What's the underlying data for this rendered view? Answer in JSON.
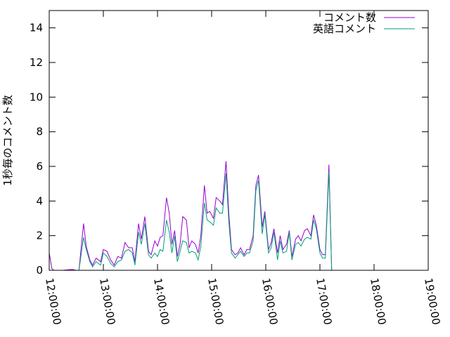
{
  "chart_data": {
    "type": "line",
    "ylabel": "1秒毎のコメント数",
    "ylim": [
      0,
      15
    ],
    "yticks": [
      0,
      2,
      4,
      6,
      8,
      10,
      12,
      14
    ],
    "ytick_labels": [
      "0",
      "2",
      "4",
      "6",
      "8",
      "10",
      "12",
      "14"
    ],
    "xlim": [
      "12:00:00",
      "19:00:00"
    ],
    "xtick_labels": [
      "12:00:00",
      "13:00:00",
      "14:00:00",
      "15:00:00",
      "16:00:00",
      "17:00:00",
      "18:00:00",
      "19:00:00"
    ],
    "legend_position": "top-right",
    "grid": false,
    "x": [
      "12:00",
      "12:05",
      "12:10",
      "12:15",
      "12:20",
      "12:25",
      "12:30",
      "12:35",
      "12:40",
      "12:45",
      "12:50",
      "12:55",
      "13:00",
      "13:05",
      "13:10",
      "13:15",
      "13:20",
      "13:25",
      "13:30",
      "13:35",
      "13:40",
      "13:45",
      "13:50",
      "13:55",
      "14:00",
      "14:05",
      "14:10",
      "14:15",
      "14:20",
      "14:25",
      "14:30",
      "14:35",
      "14:40",
      "14:45",
      "14:50",
      "14:55",
      "15:00",
      "15:05",
      "15:10",
      "15:15",
      "15:20",
      "15:25",
      "15:30",
      "15:35",
      "15:40",
      "15:45",
      "15:50",
      "15:55",
      "16:00",
      "16:05",
      "16:10",
      "16:15",
      "16:20",
      "16:25",
      "16:30",
      "16:35",
      "16:40",
      "16:45",
      "16:50",
      "16:55",
      "17:00",
      "17:05",
      "17:10",
      "17:15",
      "17:20",
      "17:25",
      "17:30",
      "17:35",
      "17:40",
      "17:45",
      "17:50",
      "17:55",
      "18:00",
      "18:05",
      "18:10",
      "18:15",
      "18:20",
      "18:25"
    ],
    "series": [
      {
        "name": "コメント数",
        "color": "#9400d3",
        "values": [
          1.0,
          0.1,
          0.0,
          0.0,
          0.0,
          0.05,
          0.0,
          0.0,
          2.7,
          1.4,
          0.6,
          0.3,
          0.7,
          0.5,
          1.2,
          1.1,
          0.6,
          0.3,
          0.8,
          0.7,
          1.6,
          1.3,
          1.3,
          0.5,
          2.7,
          1.8,
          3.1,
          1.1,
          0.9,
          1.7,
          1.4,
          1.9,
          2.0,
          4.2,
          3.3,
          1.5,
          2.3,
          0.8,
          1.5,
          3.1,
          2.9,
          1.3,
          1.7,
          1.5,
          1.0,
          2.0,
          4.9,
          3.3,
          3.4,
          3.0,
          4.2,
          4.0,
          3.8,
          6.3,
          3.3,
          1.2,
          0.9,
          1.0,
          1.3,
          0.9,
          1.2,
          1.2,
          2.0,
          4.9,
          5.5,
          2.5,
          3.4,
          1.2,
          1.6,
          2.4,
          1.0,
          2.0,
          1.2,
          1.5,
          2.3,
          0.8,
          1.8,
          2.0,
          1.7,
          2.3,
          2.4,
          2.0,
          3.2,
          2.6,
          1.2,
          0.9,
          0.9,
          6.1,
          0.0
        ],
        "x": [
          "12:00",
          "12:03",
          "12:05",
          "12:08",
          "12:15",
          "12:25",
          "12:30",
          "12:33",
          "12:38",
          "12:41",
          "12:45",
          "12:48",
          "12:52",
          "12:57",
          "13:00",
          "13:04",
          "13:08",
          "13:12",
          "13:16",
          "13:20",
          "13:24",
          "13:28",
          "13:32",
          "13:35",
          "13:39",
          "13:42",
          "13:46",
          "13:50",
          "13:53",
          "13:57",
          "14:00",
          "14:03",
          "14:06",
          "14:10",
          "14:13",
          "14:16",
          "14:19",
          "14:22",
          "14:25",
          "14:28",
          "14:32",
          "14:35",
          "14:38",
          "14:42",
          "14:45",
          "14:48",
          "14:52",
          "14:55",
          "14:58",
          "15:02",
          "15:05",
          "15:09",
          "15:12",
          "15:16",
          "15:19",
          "15:22",
          "15:26",
          "15:29",
          "15:32",
          "15:36",
          "15:39",
          "15:42",
          "15:46",
          "15:49",
          "15:52",
          "15:56",
          "15:59",
          "16:03",
          "16:06",
          "16:09",
          "16:13",
          "16:16",
          "16:19",
          "16:23",
          "16:26",
          "16:29",
          "16:33",
          "16:36",
          "16:39",
          "16:43",
          "16:46",
          "16:50",
          "16:53",
          "16:56",
          "17:00",
          "17:03",
          "17:06",
          "17:10",
          "17:13"
        ]
      },
      {
        "name": "英語コメント",
        "color": "#009e73",
        "values": [
          0.0,
          0.0,
          0.0,
          0.0,
          0.0,
          0.0,
          0.0,
          0.0,
          1.9,
          1.2,
          0.5,
          0.2,
          0.5,
          0.3,
          1.0,
          0.8,
          0.4,
          0.2,
          0.5,
          0.6,
          1.1,
          1.2,
          1.0,
          0.3,
          2.2,
          1.5,
          2.7,
          0.9,
          0.7,
          1.0,
          0.8,
          1.2,
          1.1,
          2.9,
          2.2,
          1.0,
          2.0,
          0.5,
          1.1,
          1.7,
          1.6,
          1.0,
          1.1,
          1.0,
          0.6,
          1.4,
          3.9,
          2.9,
          2.8,
          2.6,
          3.6,
          3.3,
          3.3,
          5.6,
          2.8,
          1.0,
          0.7,
          0.9,
          1.1,
          0.8,
          1.0,
          1.0,
          1.7,
          4.6,
          5.2,
          2.1,
          3.2,
          1.0,
          1.3,
          2.2,
          0.6,
          1.7,
          1.0,
          1.1,
          2.2,
          0.6,
          1.5,
          1.6,
          1.4,
          1.8,
          1.9,
          1.8,
          2.9,
          2.4,
          1.0,
          0.7,
          0.7,
          5.7,
          0.0
        ],
        "x": [
          "12:00",
          "12:03",
          "12:05",
          "12:08",
          "12:15",
          "12:25",
          "12:30",
          "12:33",
          "12:38",
          "12:41",
          "12:45",
          "12:48",
          "12:52",
          "12:57",
          "13:00",
          "13:04",
          "13:08",
          "13:12",
          "13:16",
          "13:20",
          "13:24",
          "13:28",
          "13:32",
          "13:35",
          "13:39",
          "13:42",
          "13:46",
          "13:50",
          "13:53",
          "13:57",
          "14:00",
          "14:03",
          "14:06",
          "14:10",
          "14:13",
          "14:16",
          "14:19",
          "14:22",
          "14:25",
          "14:28",
          "14:32",
          "14:35",
          "14:38",
          "14:42",
          "14:45",
          "14:48",
          "14:52",
          "14:55",
          "14:58",
          "15:02",
          "15:05",
          "15:09",
          "15:12",
          "15:16",
          "15:19",
          "15:22",
          "15:26",
          "15:29",
          "15:32",
          "15:36",
          "15:39",
          "15:42",
          "15:46",
          "15:49",
          "15:52",
          "15:56",
          "15:59",
          "16:03",
          "16:06",
          "16:09",
          "16:13",
          "16:16",
          "16:19",
          "16:23",
          "16:26",
          "16:29",
          "16:33",
          "16:36",
          "16:39",
          "16:43",
          "16:46",
          "16:50",
          "16:53",
          "16:56",
          "17:00",
          "17:03",
          "17:06",
          "17:10",
          "17:13"
        ]
      }
    ]
  }
}
